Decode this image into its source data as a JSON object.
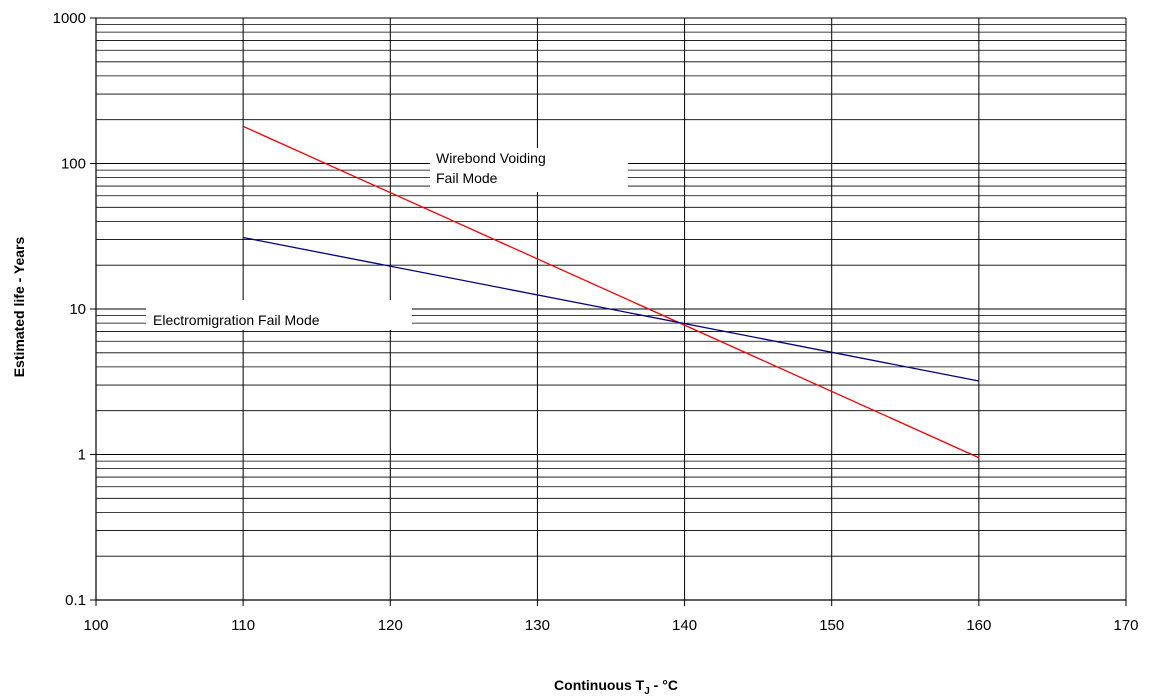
{
  "chart_data": {
    "type": "line",
    "title": "",
    "xlabel": "Continuous T",
    "xlabel_subscript": "J",
    "xlabel_suffix": " - °C",
    "ylabel": "Estimated life - Years",
    "x_range": [
      100,
      170
    ],
    "y_range": [
      0.1,
      1000
    ],
    "y_scale": "log",
    "grid": true,
    "x_ticks": [
      100,
      110,
      120,
      130,
      140,
      150,
      160,
      170
    ],
    "x_tick_labels": [
      "100",
      "110",
      "120",
      "130",
      "140",
      "150",
      "160",
      "170"
    ],
    "y_ticks": [
      0.1,
      1,
      10,
      100,
      1000
    ],
    "y_tick_labels": [
      "0.1",
      "1",
      "10",
      "100",
      "1000"
    ],
    "series": [
      {
        "label": "Wirebond Voiding Fail Mode",
        "color": "#ff0000",
        "x": [
          110,
          160
        ],
        "y": [
          180,
          0.95
        ]
      },
      {
        "label": "Electromigration Fail Mode",
        "color": "#000080",
        "x": [
          110,
          160
        ],
        "y": [
          31,
          3.2
        ]
      }
    ],
    "annotations": [
      {
        "lines": [
          "Wirebond Voiding",
          "Fail Mode"
        ]
      },
      {
        "lines": [
          "Electromigration Fail Mode"
        ]
      }
    ]
  }
}
